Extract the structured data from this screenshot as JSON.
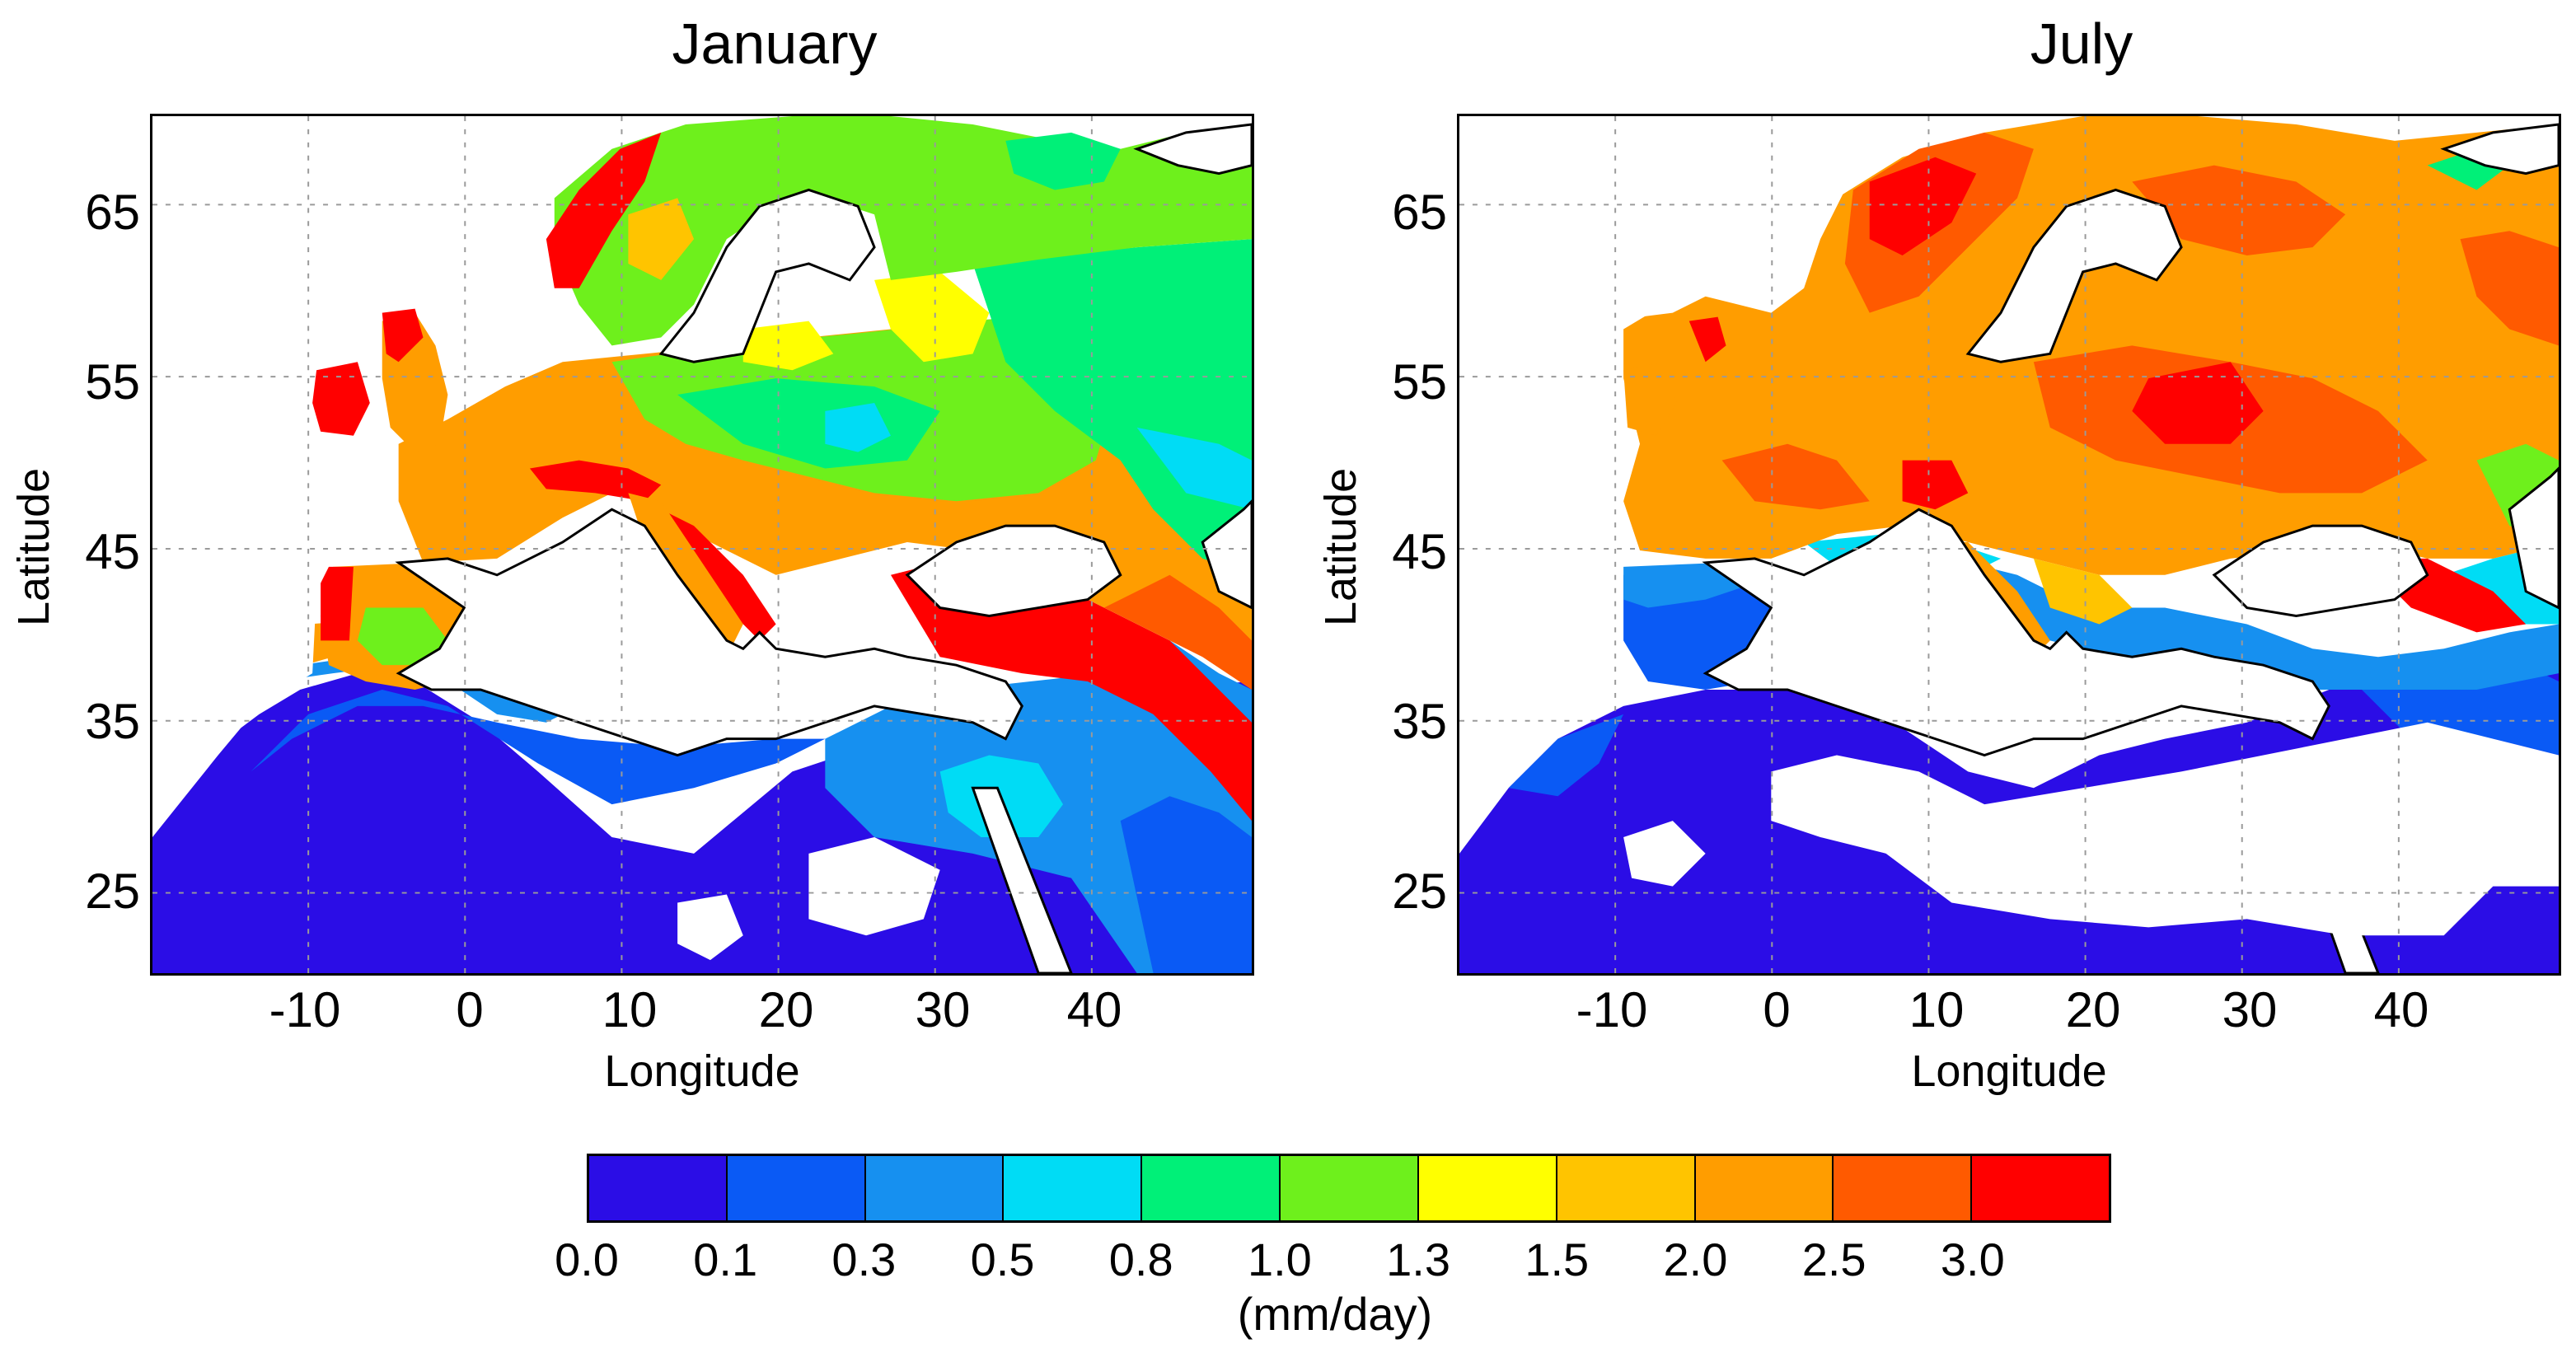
{
  "panels": [
    {
      "title": "January",
      "xlabel": "Longitude",
      "ylabel": "Latitude",
      "lat_ticks": [
        "65",
        "55",
        "45",
        "35",
        "25"
      ],
      "lon_ticks": [
        "-10",
        "0",
        "10",
        "20",
        "30",
        "40"
      ]
    },
    {
      "title": "July",
      "xlabel": "Longitude",
      "ylabel": "Latitude",
      "lat_ticks": [
        "65",
        "55",
        "45",
        "35",
        "25"
      ],
      "lon_ticks": [
        "-10",
        "0",
        "10",
        "20",
        "30",
        "40"
      ]
    }
  ],
  "colorbar": {
    "unit": "(mm/day)",
    "labels": [
      "0.0",
      "0.1",
      "0.3",
      "0.5",
      "0.8",
      "1.0",
      "1.3",
      "1.5",
      "2.0",
      "2.5",
      "3.0"
    ],
    "colors": [
      "#2b0de6",
      "#0a5af5",
      "#1690f0",
      "#00dcf5",
      "#00f078",
      "#6ef01c",
      "#ffff00",
      "#ffc400",
      "#ff9d00",
      "#ff5a00",
      "#ff0000"
    ]
  },
  "chart_data": [
    {
      "type": "heatmap",
      "title": "January",
      "xlabel": "Longitude",
      "ylabel": "Latitude",
      "xlim": [
        -20,
        50
      ],
      "ylim": [
        20,
        70
      ],
      "legend": "bottom colorbar",
      "grid": true
    },
    {
      "type": "heatmap",
      "title": "July",
      "xlabel": "Longitude",
      "ylabel": "Latitude",
      "xlim": [
        -20,
        50
      ],
      "ylim": [
        20,
        70
      ],
      "legend": "bottom colorbar",
      "grid": true
    }
  ]
}
